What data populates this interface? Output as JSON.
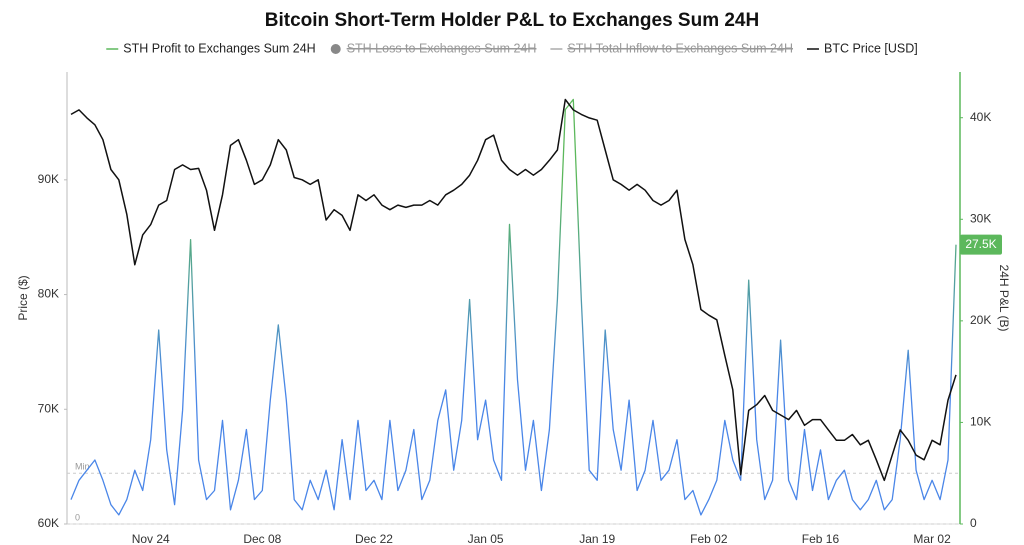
{
  "chart_data": {
    "type": "line",
    "title": "Bitcoin Short-Term Holder P&L to Exchanges Sum 24H",
    "ylabel": "Price ($)",
    "y2label": "24H P&L (B)",
    "categories": [
      "Nov 14",
      "Nov 15",
      "Nov 16",
      "Nov 17",
      "Nov 18",
      "Nov 19",
      "Nov 20",
      "Nov 21",
      "Nov 22",
      "Nov 23",
      "Nov 24",
      "Nov 25",
      "Nov 26",
      "Nov 27",
      "Nov 28",
      "Nov 29",
      "Nov 30",
      "Dec 01",
      "Dec 02",
      "Dec 03",
      "Dec 04",
      "Dec 05",
      "Dec 06",
      "Dec 07",
      "Dec 08",
      "Dec 09",
      "Dec 10",
      "Dec 11",
      "Dec 12",
      "Dec 13",
      "Dec 14",
      "Dec 15",
      "Dec 16",
      "Dec 17",
      "Dec 18",
      "Dec 19",
      "Dec 20",
      "Dec 21",
      "Dec 22",
      "Dec 23",
      "Dec 24",
      "Dec 25",
      "Dec 26",
      "Dec 27",
      "Dec 28",
      "Dec 29",
      "Dec 30",
      "Dec 31",
      "Jan 01",
      "Jan 02",
      "Jan 03",
      "Jan 04",
      "Jan 05",
      "Jan 06",
      "Jan 07",
      "Jan 08",
      "Jan 09",
      "Jan 10",
      "Jan 11",
      "Jan 12",
      "Jan 13",
      "Jan 14",
      "Jan 15",
      "Jan 16",
      "Jan 17",
      "Jan 18",
      "Jan 19",
      "Jan 20",
      "Jan 21",
      "Jan 22",
      "Jan 23",
      "Jan 24",
      "Jan 25",
      "Jan 26",
      "Jan 27",
      "Jan 28",
      "Jan 29",
      "Jan 30",
      "Jan 31",
      "Feb 01",
      "Feb 02",
      "Feb 03",
      "Feb 04",
      "Feb 05",
      "Feb 06",
      "Feb 07",
      "Feb 08",
      "Feb 09",
      "Feb 10",
      "Feb 11",
      "Feb 12",
      "Feb 13",
      "Feb 14",
      "Feb 15",
      "Feb 16",
      "Feb 17",
      "Feb 18",
      "Feb 19",
      "Feb 20",
      "Feb 21",
      "Feb 22",
      "Feb 23",
      "Feb 24",
      "Feb 25",
      "Feb 26",
      "Feb 27",
      "Feb 28",
      "Mar 01",
      "Mar 02",
      "Mar 03",
      "Mar 04",
      "Mar 05"
    ],
    "xticks": [
      "Nov 24",
      "Dec 08",
      "Dec 22",
      "Jan 05",
      "Jan 19",
      "Feb 02",
      "Feb 16",
      "Mar 02"
    ],
    "ylim": [
      60000,
      99400
    ],
    "yticks": [
      {
        "value": 60000,
        "label": "60K"
      },
      {
        "value": 70000,
        "label": "70K"
      },
      {
        "value": 80000,
        "label": "80K"
      },
      {
        "value": 90000,
        "label": "90K"
      }
    ],
    "y2lim": [
      0,
      44500
    ],
    "y2ticks": [
      0,
      {
        "value": 10000,
        "label": "10K"
      },
      {
        "value": 20000,
        "label": "20K"
      },
      {
        "value": 30000,
        "label": "30K"
      },
      {
        "value": 40000,
        "label": "40K"
      }
    ],
    "y2_axis_color": "#5cb85c",
    "series": [
      {
        "name": "STH Profit to Exchanges Sum 24H",
        "axis": "y2",
        "color": "#5cb85c",
        "gradient": [
          "#4a86e8",
          "#5cb85c"
        ],
        "marker": "line",
        "values": [
          2400,
          4300,
          5300,
          6300,
          4300,
          1900,
          900,
          2400,
          5300,
          3300,
          8300,
          19100,
          7300,
          1900,
          11200,
          28000,
          6300,
          2400,
          3300,
          10200,
          1400,
          4300,
          9300,
          2400,
          3300,
          12200,
          19600,
          12200,
          2400,
          1400,
          4300,
          2400,
          5300,
          1400,
          8300,
          2400,
          10200,
          3300,
          4300,
          2400,
          10200,
          3300,
          5300,
          9300,
          2400,
          4300,
          10200,
          13200,
          5300,
          10200,
          22100,
          8300,
          12200,
          6300,
          4300,
          29500,
          14200,
          5300,
          10200,
          3300,
          9300,
          22100,
          40800,
          41800,
          22100,
          5300,
          4300,
          19100,
          9300,
          5300,
          12200,
          3300,
          5300,
          10200,
          4300,
          5300,
          8300,
          2400,
          3300,
          900,
          2400,
          4300,
          10200,
          6300,
          4300,
          24000,
          8300,
          2400,
          4300,
          18100,
          4300,
          2400,
          9300,
          3300,
          7300,
          2400,
          4300,
          5300,
          2400,
          1400,
          2400,
          4300,
          1400,
          2400,
          8300,
          17100,
          5300,
          2400,
          4300,
          2400,
          6300,
          27500
        ]
      },
      {
        "name": "STH Loss to Exchanges Sum 24H",
        "color": "#888888",
        "marker": "circle",
        "hidden": true
      },
      {
        "name": "STH Total Inflow to Exchanges Sum 24H",
        "color": "#aaaaaa",
        "marker": "line",
        "hidden": true
      },
      {
        "name": "BTC Price [USD]",
        "axis": "y",
        "color": "#111111",
        "marker": "line",
        "values": [
          95700,
          96100,
          95400,
          94800,
          93500,
          90900,
          90000,
          87000,
          82600,
          85200,
          86100,
          87800,
          88200,
          90900,
          91300,
          90900,
          91000,
          89100,
          85600,
          88700,
          93000,
          93500,
          91700,
          89600,
          90000,
          91300,
          93500,
          92600,
          90200,
          90000,
          89600,
          90000,
          86500,
          87400,
          86900,
          85600,
          88700,
          88200,
          88700,
          87800,
          87400,
          87800,
          87600,
          87800,
          87800,
          88200,
          87800,
          88700,
          89100,
          89600,
          90400,
          91700,
          93500,
          93900,
          91700,
          90900,
          90400,
          90900,
          90400,
          90900,
          91700,
          92600,
          97000,
          96100,
          95700,
          95400,
          95200,
          92600,
          90000,
          89600,
          89100,
          89600,
          89100,
          88200,
          87800,
          88200,
          89100,
          84800,
          82600,
          78700,
          78200,
          77800,
          74700,
          71700,
          64300,
          69900,
          70400,
          71200,
          69900,
          69500,
          69100,
          69900,
          68600,
          69100,
          69100,
          68200,
          67300,
          67300,
          67800,
          66900,
          67300,
          65600,
          63800,
          66000,
          68200,
          67300,
          66000,
          65600,
          67300,
          66900,
          70800,
          73000
        ]
      }
    ],
    "annotations": [
      {
        "label": "Min",
        "value": 5000,
        "axis": "y2",
        "style": "dashed"
      },
      {
        "label": "0",
        "value": 0,
        "axis": "y2",
        "style": "dashed"
      },
      {
        "label": "27.5K",
        "value": 27500,
        "axis": "y2",
        "style": "badge"
      }
    ]
  }
}
